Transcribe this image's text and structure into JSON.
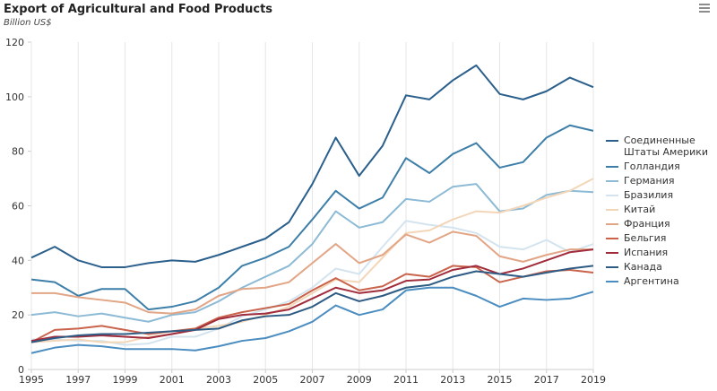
{
  "chart_data": {
    "type": "line",
    "title": "Export of Agricultural and Food Products",
    "subtitle": "Billion US$",
    "x": [
      1995,
      1996,
      1997,
      1998,
      1999,
      2000,
      2001,
      2002,
      2003,
      2004,
      2005,
      2006,
      2007,
      2008,
      2009,
      2010,
      2011,
      2012,
      2013,
      2014,
      2015,
      2016,
      2017,
      2018,
      2019
    ],
    "xlim": [
      1995,
      2019
    ],
    "xticks": [
      1995,
      1997,
      1999,
      2001,
      2003,
      2005,
      2007,
      2009,
      2011,
      2013,
      2015,
      2017,
      2019
    ],
    "ylim": [
      0,
      120
    ],
    "yticks": [
      0,
      20,
      40,
      60,
      80,
      100,
      120
    ],
    "grid": "x",
    "legend": "right",
    "series": [
      {
        "name": "Соединенные Штаты Америки",
        "color": "#2b5f8c",
        "values": [
          41,
          45,
          40,
          37.5,
          37.5,
          39,
          40,
          39.5,
          42,
          45,
          48,
          54,
          68,
          85,
          71,
          82,
          100.5,
          99,
          106,
          111.5,
          101,
          99,
          102,
          107,
          103.5
        ]
      },
      {
        "name": "Голландия",
        "color": "#3d7fa8",
        "values": [
          33,
          32,
          27,
          29.5,
          29.5,
          22,
          23,
          25,
          30,
          38,
          41,
          45,
          55,
          65.5,
          59,
          63,
          77.5,
          72,
          79,
          83,
          74,
          76,
          85,
          89.5,
          87.5
        ]
      },
      {
        "name": "Германия",
        "color": "#8dbad5",
        "values": [
          20,
          21,
          19.5,
          20.5,
          19,
          17.5,
          20,
          21,
          25,
          30,
          34,
          38,
          46,
          58,
          52,
          54,
          62.5,
          61.5,
          67,
          68,
          58,
          59,
          64,
          65.5,
          65
        ]
      },
      {
        "name": "Бразилия",
        "color": "#d4e4ef",
        "values": [
          11,
          11,
          10.5,
          10.5,
          9,
          9.5,
          12,
          12,
          15,
          19.5,
          22,
          25,
          30,
          37,
          35,
          45,
          54.5,
          53,
          52,
          50,
          45,
          44,
          47.5,
          43,
          46
        ]
      },
      {
        "name": "Китай",
        "color": "#f3d6b8",
        "values": [
          10,
          10.5,
          11,
          10,
          10,
          12,
          13,
          15,
          16,
          17.5,
          20,
          23,
          28,
          33,
          32,
          41,
          50,
          51,
          55,
          58,
          57.5,
          60,
          63,
          65.5,
          70
        ]
      },
      {
        "name": "Франция",
        "color": "#e2a585",
        "values": [
          28,
          28,
          26.5,
          25.5,
          24.5,
          21,
          20.5,
          22,
          27,
          29.5,
          30,
          32,
          39,
          46,
          39,
          42,
          49.5,
          46.5,
          50.5,
          49,
          41.5,
          39.5,
          42,
          44,
          44
        ]
      },
      {
        "name": "Бельгия",
        "color": "#c9634c",
        "values": [
          10,
          14.5,
          15,
          16,
          14.5,
          13,
          14,
          15,
          19,
          21,
          22.5,
          24,
          29,
          33.5,
          29,
          30.5,
          35,
          34,
          38,
          37.5,
          32,
          34,
          36,
          36.5,
          35.5
        ]
      },
      {
        "name": "Испания",
        "color": "#a02c3c",
        "values": [
          10.5,
          12,
          12,
          12.5,
          12,
          11.5,
          13,
          14.5,
          18.5,
          20,
          20.5,
          22,
          26,
          30,
          28,
          29,
          32.5,
          33,
          36.5,
          38,
          35,
          37,
          40,
          43,
          44
        ]
      },
      {
        "name": "Канада",
        "color": "#2e5b84",
        "values": [
          10,
          11.5,
          12.5,
          13,
          13,
          13.5,
          14,
          14.5,
          15,
          18,
          19.5,
          20,
          23,
          28,
          25,
          27,
          30,
          31,
          34,
          36,
          35,
          34,
          35.5,
          37,
          38
        ]
      },
      {
        "name": "Аргентина",
        "color": "#4b8dc0",
        "values": [
          6,
          8,
          9,
          8.5,
          7.5,
          7.5,
          7.5,
          7,
          8.5,
          10.5,
          11.5,
          14,
          17.5,
          23.5,
          20,
          22,
          29,
          30,
          30,
          27,
          23,
          26,
          25.5,
          26,
          28.5
        ]
      }
    ]
  }
}
